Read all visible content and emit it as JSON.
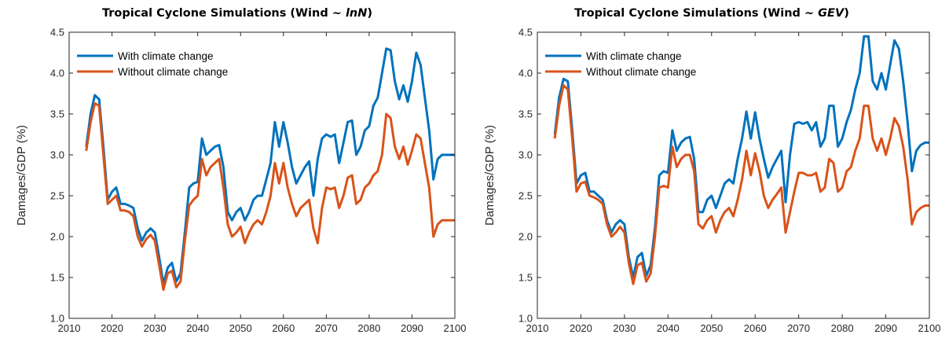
{
  "chart_data": [
    {
      "type": "line",
      "title_prefix": "Tropical Cyclone Simulations (Wind ~ ",
      "title_dist": "lnN",
      "title_suffix": ")",
      "xlabel": "",
      "ylabel": "Damages/GDP (%)",
      "xlim": [
        2010,
        2100
      ],
      "ylim": [
        1.0,
        4.5
      ],
      "xticks": [
        2010,
        2020,
        2030,
        2040,
        2050,
        2060,
        2070,
        2080,
        2090,
        2100
      ],
      "yticks": [
        "1.0",
        "1.5",
        "2.0",
        "2.5",
        "3.0",
        "3.5",
        "4.0",
        "4.5"
      ],
      "grid": false,
      "legend_position": "top-left",
      "x": [
        2014,
        2015,
        2016,
        2017,
        2018,
        2019,
        2020,
        2021,
        2022,
        2023,
        2024,
        2025,
        2026,
        2027,
        2028,
        2029,
        2030,
        2031,
        2032,
        2033,
        2034,
        2035,
        2036,
        2037,
        2038,
        2039,
        2040,
        2041,
        2042,
        2043,
        2044,
        2045,
        2046,
        2047,
        2048,
        2049,
        2050,
        2051,
        2052,
        2053,
        2054,
        2055,
        2056,
        2057,
        2058,
        2059,
        2060,
        2061,
        2062,
        2063,
        2064,
        2065,
        2066,
        2067,
        2068,
        2069,
        2070,
        2071,
        2072,
        2073,
        2074,
        2075,
        2076,
        2077,
        2078,
        2079,
        2080,
        2081,
        2082,
        2083,
        2084,
        2085,
        2086,
        2087,
        2088,
        2089,
        2090,
        2091,
        2092,
        2093,
        2094,
        2095,
        2096,
        2097,
        2098,
        2099,
        2100
      ],
      "series": [
        {
          "name": "With climate change",
          "color": "#0072BD",
          "values": [
            3.1,
            3.5,
            3.73,
            3.68,
            3.1,
            2.45,
            2.55,
            2.6,
            2.4,
            2.4,
            2.38,
            2.35,
            2.1,
            1.95,
            2.05,
            2.1,
            2.05,
            1.75,
            1.42,
            1.62,
            1.68,
            1.45,
            1.55,
            2.05,
            2.6,
            2.65,
            2.67,
            3.2,
            3.0,
            3.05,
            3.1,
            3.12,
            2.85,
            2.3,
            2.2,
            2.3,
            2.35,
            2.2,
            2.3,
            2.45,
            2.5,
            2.5,
            2.7,
            2.9,
            3.4,
            3.1,
            3.4,
            3.15,
            2.85,
            2.65,
            2.75,
            2.85,
            2.92,
            2.5,
            2.95,
            3.2,
            3.25,
            3.22,
            3.25,
            2.9,
            3.15,
            3.4,
            3.42,
            3.0,
            3.1,
            3.3,
            3.35,
            3.6,
            3.7,
            4.0,
            4.3,
            4.28,
            3.9,
            3.68,
            3.85,
            3.65,
            3.9,
            4.25,
            4.1,
            3.7,
            3.3,
            2.7,
            2.95,
            3.0,
            3.0,
            3.0,
            3.0
          ]
        },
        {
          "name": "Without climate change",
          "color": "#D95319",
          "values": [
            3.05,
            3.4,
            3.63,
            3.6,
            3.0,
            2.4,
            2.45,
            2.5,
            2.32,
            2.32,
            2.3,
            2.25,
            2.0,
            1.88,
            1.97,
            2.02,
            1.95,
            1.65,
            1.35,
            1.55,
            1.58,
            1.38,
            1.45,
            1.95,
            2.38,
            2.45,
            2.5,
            2.95,
            2.75,
            2.85,
            2.9,
            2.95,
            2.6,
            2.15,
            2.0,
            2.05,
            2.12,
            1.92,
            2.05,
            2.15,
            2.2,
            2.15,
            2.3,
            2.5,
            2.9,
            2.65,
            2.9,
            2.6,
            2.4,
            2.25,
            2.35,
            2.4,
            2.45,
            2.1,
            1.92,
            2.35,
            2.6,
            2.58,
            2.6,
            2.35,
            2.5,
            2.72,
            2.75,
            2.4,
            2.45,
            2.6,
            2.65,
            2.75,
            2.8,
            3.0,
            3.5,
            3.45,
            3.1,
            2.95,
            3.1,
            2.88,
            3.05,
            3.25,
            3.2,
            2.9,
            2.6,
            2.0,
            2.15,
            2.2,
            2.2,
            2.2,
            2.2
          ]
        }
      ]
    },
    {
      "type": "line",
      "title_prefix": "Tropical Cyclone Simulations (Wind ~ ",
      "title_dist": "GEV",
      "title_suffix": ")",
      "xlabel": "",
      "ylabel": "Damages/GDP (%)",
      "xlim": [
        2010,
        2100
      ],
      "ylim": [
        1.0,
        4.5
      ],
      "xticks": [
        2010,
        2020,
        2030,
        2040,
        2050,
        2060,
        2070,
        2080,
        2090,
        2100
      ],
      "yticks": [
        "1.0",
        "1.5",
        "2.0",
        "2.5",
        "3.0",
        "3.5",
        "4.0",
        "4.5"
      ],
      "grid": false,
      "legend_position": "top-left",
      "x": [
        2014,
        2015,
        2016,
        2017,
        2018,
        2019,
        2020,
        2021,
        2022,
        2023,
        2024,
        2025,
        2026,
        2027,
        2028,
        2029,
        2030,
        2031,
        2032,
        2033,
        2034,
        2035,
        2036,
        2037,
        2038,
        2039,
        2040,
        2041,
        2042,
        2043,
        2044,
        2045,
        2046,
        2047,
        2048,
        2049,
        2050,
        2051,
        2052,
        2053,
        2054,
        2055,
        2056,
        2057,
        2058,
        2059,
        2060,
        2061,
        2062,
        2063,
        2064,
        2065,
        2066,
        2067,
        2068,
        2069,
        2070,
        2071,
        2072,
        2073,
        2074,
        2075,
        2076,
        2077,
        2078,
        2079,
        2080,
        2081,
        2082,
        2083,
        2084,
        2085,
        2086,
        2087,
        2088,
        2089,
        2090,
        2091,
        2092,
        2093,
        2094,
        2095,
        2096,
        2097,
        2098,
        2099,
        2100
      ],
      "series": [
        {
          "name": "With climate change",
          "color": "#0072BD",
          "values": [
            3.25,
            3.7,
            3.93,
            3.9,
            3.3,
            2.65,
            2.75,
            2.78,
            2.55,
            2.55,
            2.5,
            2.45,
            2.2,
            2.05,
            2.15,
            2.2,
            2.15,
            1.75,
            1.5,
            1.75,
            1.8,
            1.52,
            1.65,
            2.1,
            2.75,
            2.8,
            2.78,
            3.3,
            3.05,
            3.15,
            3.2,
            3.22,
            2.95,
            2.3,
            2.3,
            2.45,
            2.5,
            2.35,
            2.5,
            2.65,
            2.7,
            2.65,
            2.95,
            3.2,
            3.53,
            3.2,
            3.52,
            3.2,
            2.95,
            2.72,
            2.85,
            2.95,
            3.05,
            2.42,
            3.0,
            3.38,
            3.4,
            3.38,
            3.4,
            3.3,
            3.4,
            3.1,
            3.2,
            3.6,
            3.6,
            3.1,
            3.2,
            3.4,
            3.55,
            3.8,
            4.0,
            4.45,
            4.45,
            3.9,
            3.8,
            4.0,
            3.8,
            4.1,
            4.4,
            4.3,
            3.9,
            3.4,
            2.8,
            3.05,
            3.12,
            3.15,
            3.15
          ]
        },
        {
          "name": "Without climate change",
          "color": "#D95319",
          "values": [
            3.2,
            3.6,
            3.85,
            3.8,
            3.2,
            2.55,
            2.65,
            2.67,
            2.5,
            2.48,
            2.45,
            2.4,
            2.15,
            2.0,
            2.05,
            2.12,
            2.05,
            1.68,
            1.42,
            1.65,
            1.68,
            1.45,
            1.55,
            2.0,
            2.6,
            2.62,
            2.6,
            3.1,
            2.85,
            2.95,
            3.0,
            3.0,
            2.8,
            2.15,
            2.1,
            2.2,
            2.25,
            2.05,
            2.2,
            2.3,
            2.35,
            2.25,
            2.45,
            2.7,
            3.05,
            2.75,
            3.02,
            2.8,
            2.5,
            2.35,
            2.45,
            2.52,
            2.6,
            2.05,
            2.3,
            2.55,
            2.78,
            2.78,
            2.75,
            2.75,
            2.78,
            2.55,
            2.6,
            2.95,
            2.9,
            2.55,
            2.6,
            2.8,
            2.85,
            3.05,
            3.2,
            3.6,
            3.6,
            3.2,
            3.05,
            3.2,
            3.0,
            3.2,
            3.45,
            3.35,
            3.1,
            2.7,
            2.15,
            2.3,
            2.35,
            2.38,
            2.38
          ]
        }
      ]
    }
  ]
}
